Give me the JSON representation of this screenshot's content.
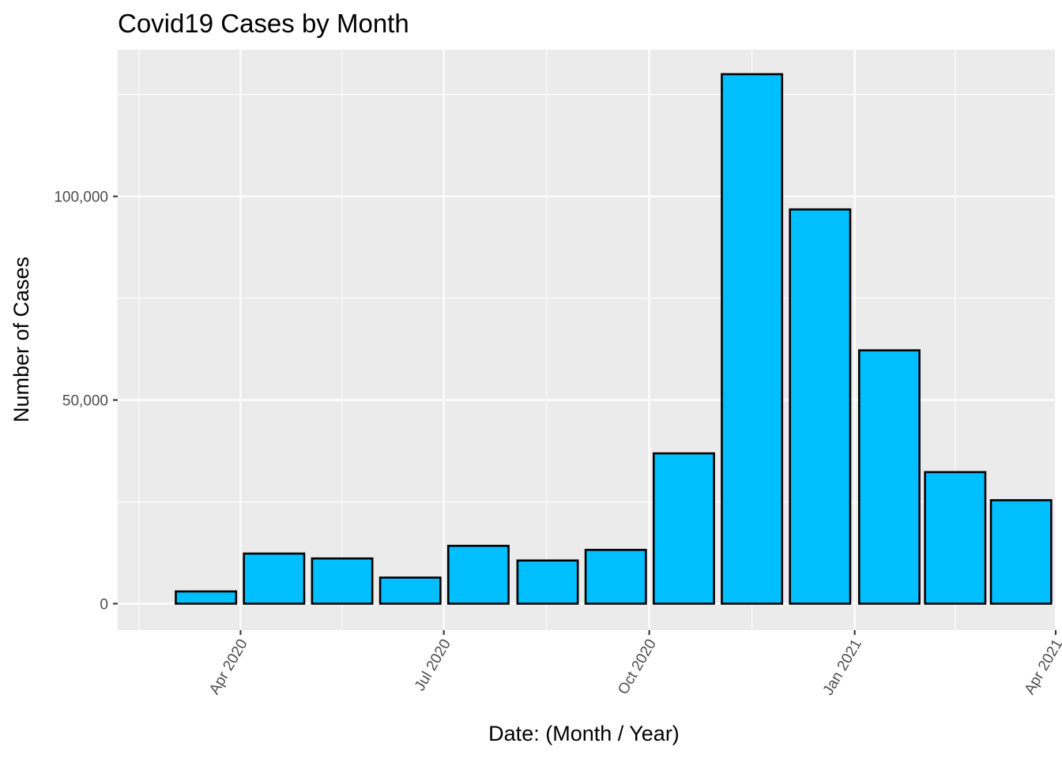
{
  "chart_data": {
    "type": "bar",
    "title": "Covid19 Cases by Month",
    "xlabel": "Date: (Month / Year)",
    "ylabel": "Number of Cases",
    "x_axis_type": "date",
    "x_ticks": [
      {
        "date": "2020-04-01",
        "label": "Apr 2020"
      },
      {
        "date": "2020-07-01",
        "label": "Jul 2020"
      },
      {
        "date": "2020-10-01",
        "label": "Oct 2020"
      },
      {
        "date": "2021-01-01",
        "label": "Jan 2021"
      },
      {
        "date": "2021-04-01",
        "label": "Apr 2021"
      }
    ],
    "x_tick_label_rotation": -60,
    "y_ticks": [
      {
        "value": 0,
        "label": "0"
      },
      {
        "value": 50000,
        "label": "50,000"
      },
      {
        "value": 100000,
        "label": "100,000"
      }
    ],
    "xlim": [
      "2020-02-06",
      "2021-04-01"
    ],
    "ylim": [
      -6500,
      136000
    ],
    "grid": true,
    "bar_fill": "#00bfff",
    "bar_outline": "#000000",
    "panel_background": "#ebebeb",
    "bars": [
      {
        "month": "2020-03",
        "value": 3000
      },
      {
        "month": "2020-04",
        "value": 12300
      },
      {
        "month": "2020-05",
        "value": 11100
      },
      {
        "month": "2020-06",
        "value": 6400
      },
      {
        "month": "2020-07",
        "value": 14200
      },
      {
        "month": "2020-08",
        "value": 10600
      },
      {
        "month": "2020-09",
        "value": 13200
      },
      {
        "month": "2020-10",
        "value": 36900
      },
      {
        "month": "2020-11",
        "value": 130000
      },
      {
        "month": "2020-12",
        "value": 96800
      },
      {
        "month": "2021-01",
        "value": 62200
      },
      {
        "month": "2021-02",
        "value": 32300
      },
      {
        "month": "2021-03",
        "value": 25400
      }
    ]
  }
}
